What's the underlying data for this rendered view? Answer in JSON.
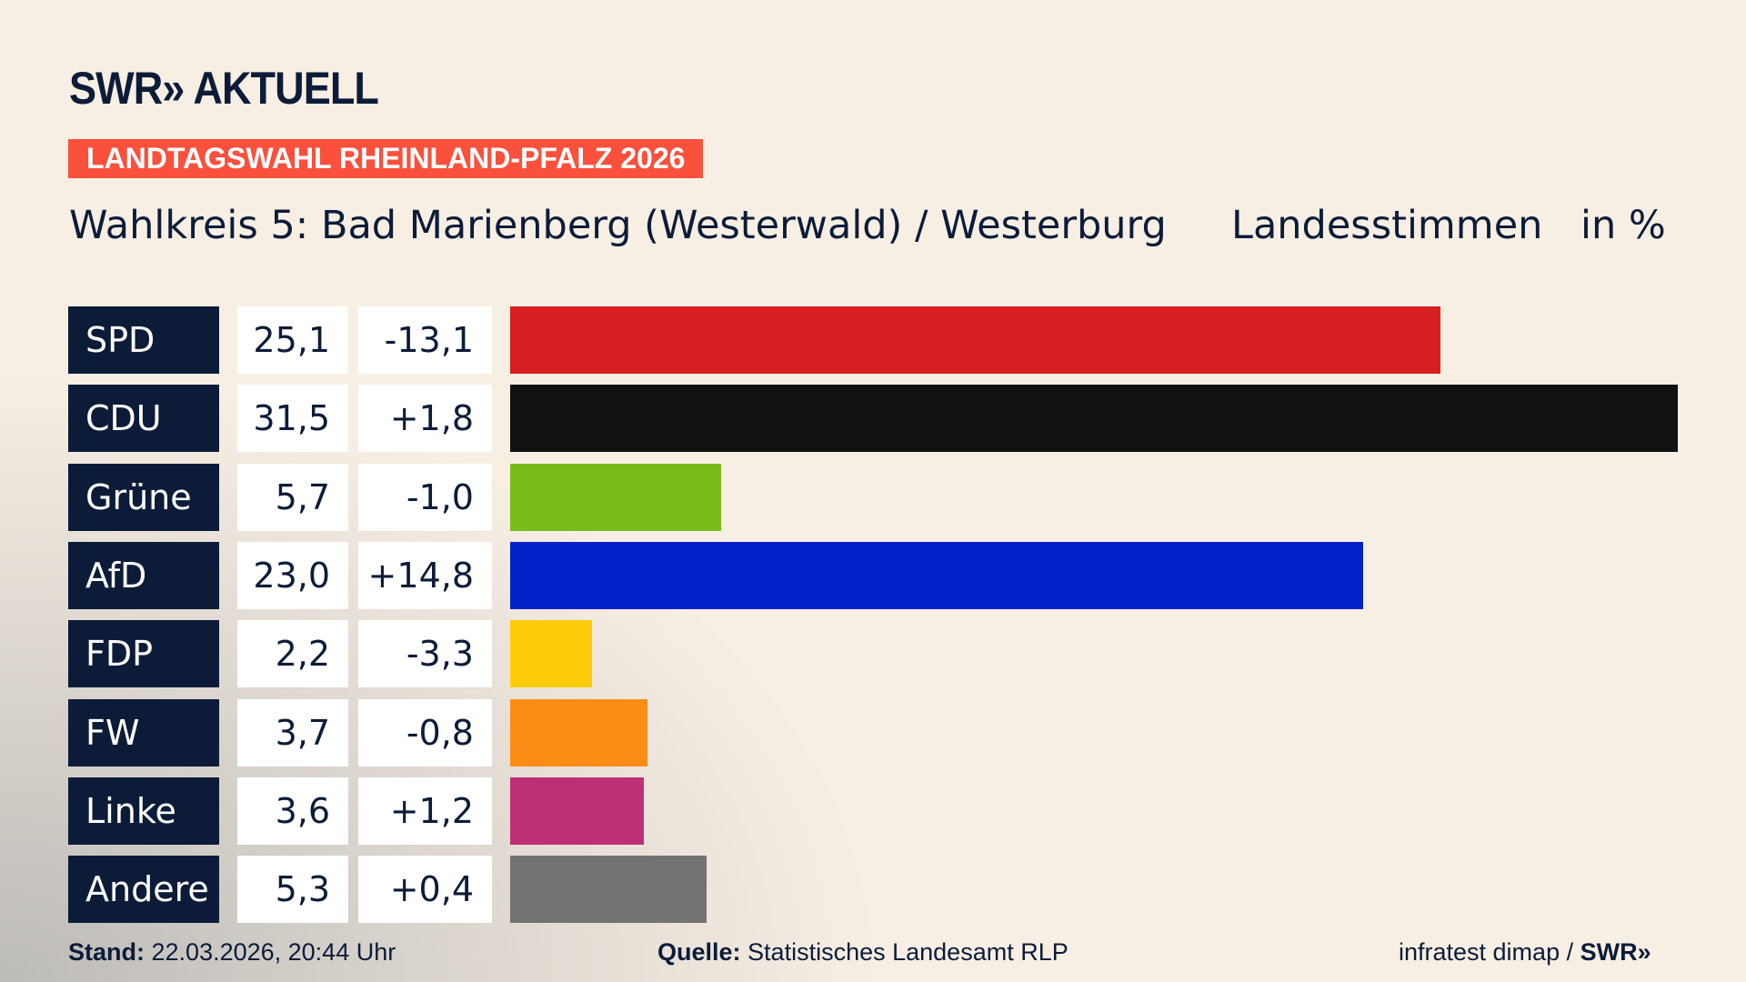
{
  "header": {
    "logo": "SWR» AKTUELL",
    "banner": "LANDTAGSWAHL RHEINLAND-PFALZ 2026",
    "title": "Wahlkreis 5: Bad Marienberg (Westerwald) / Westerburg",
    "subtitle": "Landesstimmen",
    "unit": "in %"
  },
  "chart_data": {
    "type": "bar",
    "orientation": "horizontal",
    "title": "Wahlkreis 5: Bad Marienberg (Westerwald) / Westerburg – Landesstimmen in %",
    "categories": [
      "SPD",
      "CDU",
      "Grüne",
      "AfD",
      "FDP",
      "FW",
      "Linke",
      "Andere"
    ],
    "values": [
      25.1,
      31.5,
      5.7,
      23.0,
      2.2,
      3.7,
      3.6,
      5.3
    ],
    "value_labels": [
      "25,1",
      "31,5",
      "5,7",
      "23,0",
      "2,2",
      "3,7",
      "3,6",
      "5,3"
    ],
    "diff_labels": [
      "-13,1",
      "+1,8",
      "-1,0",
      "+14,8",
      "-3,3",
      "-0,8",
      "+1,2",
      "+0,4"
    ],
    "colors": [
      "#d81e21",
      "#111111",
      "#78bc1b",
      "#0021c8",
      "#ffcc09",
      "#fd8c16",
      "#be3075",
      "#737373"
    ],
    "xlim": [
      0,
      31.5
    ]
  },
  "footer": {
    "stand_label": "Stand:",
    "stand": "22.03.2026, 20:44 Uhr",
    "quelle_label": "Quelle:",
    "quelle": "Statistisches Landesamt RLP",
    "credit": "infratest dimap / ",
    "credit_logo": "SWR»"
  }
}
